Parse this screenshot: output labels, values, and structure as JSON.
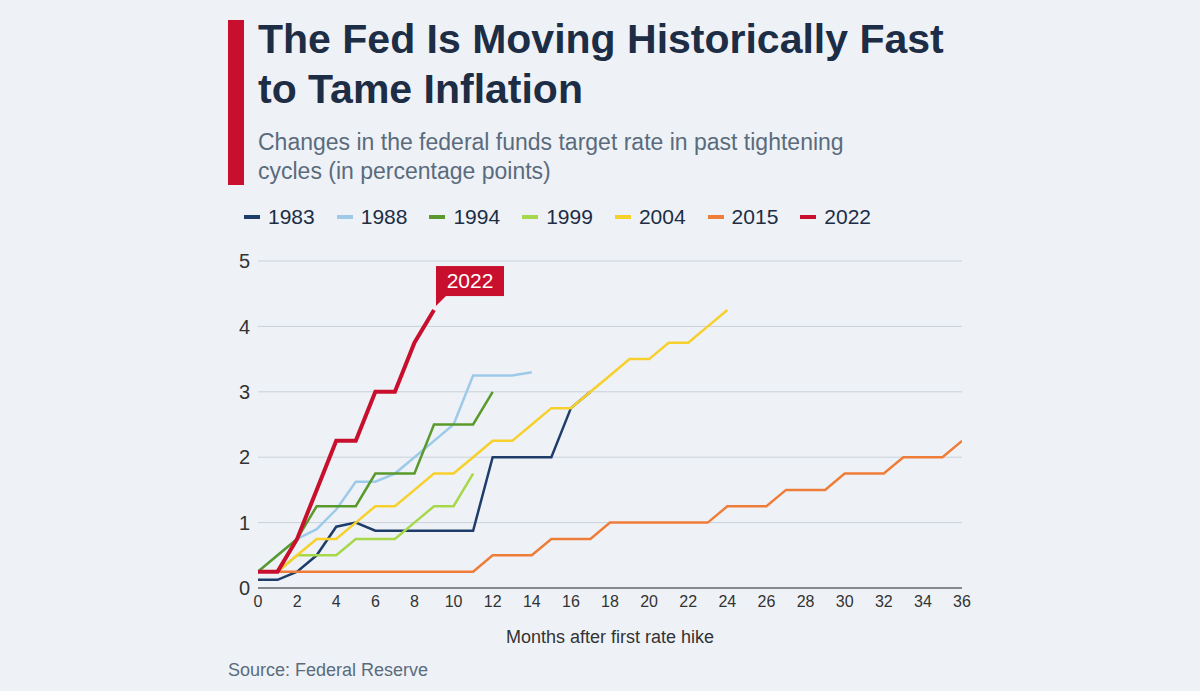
{
  "chart_data": {
    "type": "line",
    "title": "The Fed Is Moving Historically Fast to Tame Inflation",
    "subtitle": "Changes in the federal funds target rate in past tightening cycles (in percentage points)",
    "x_label": "Months after first rate hike",
    "source": "Source: Federal Reserve",
    "x": [
      0,
      1,
      2,
      3,
      4,
      5,
      6,
      7,
      8,
      9,
      10,
      11,
      12,
      13,
      14,
      15,
      16,
      17,
      18,
      19,
      20,
      21,
      22,
      23,
      24,
      25,
      26,
      27,
      28,
      29,
      30,
      31,
      32,
      33,
      34,
      35,
      36
    ],
    "xlim": [
      0,
      36
    ],
    "xticks": [
      0,
      2,
      4,
      6,
      8,
      10,
      12,
      14,
      16,
      18,
      20,
      22,
      24,
      26,
      28,
      30,
      32,
      34,
      36
    ],
    "ylim": [
      0,
      5
    ],
    "yticks": [
      0,
      1,
      2,
      3,
      4,
      5
    ],
    "grid": true,
    "series": [
      {
        "name": "1983",
        "color": "#1f3d6b",
        "values": [
          0.125,
          0.125,
          0.25,
          0.5,
          0.9375,
          1.0,
          0.875,
          0.875,
          0.875,
          0.875,
          0.875,
          0.875,
          2.0,
          2.0,
          2.0,
          2.0,
          2.75,
          3.0,
          null,
          null,
          null,
          null,
          null,
          null,
          null,
          null,
          null,
          null,
          null,
          null,
          null,
          null,
          null,
          null,
          null,
          null,
          null
        ]
      },
      {
        "name": "1988",
        "color": "#9ecae9",
        "values": [
          0.25,
          0.5,
          0.75,
          0.9,
          1.2,
          1.625,
          1.625,
          1.75,
          2.0,
          2.25,
          2.5,
          3.25,
          3.25,
          3.25,
          3.3,
          null,
          null,
          null,
          null,
          null,
          null,
          null,
          null,
          null,
          null,
          null,
          null,
          null,
          null,
          null,
          null,
          null,
          null,
          null,
          null,
          null,
          null
        ]
      },
      {
        "name": "1994",
        "color": "#5a9a2c",
        "values": [
          0.25,
          0.5,
          0.75,
          1.25,
          1.25,
          1.25,
          1.75,
          1.75,
          1.75,
          2.5,
          2.5,
          2.5,
          3.0,
          null,
          null,
          null,
          null,
          null,
          null,
          null,
          null,
          null,
          null,
          null,
          null,
          null,
          null,
          null,
          null,
          null,
          null,
          null,
          null,
          null,
          null,
          null,
          null
        ]
      },
      {
        "name": "1999",
        "color": "#a6d84a",
        "values": [
          0.25,
          0.25,
          0.5,
          0.5,
          0.5,
          0.75,
          0.75,
          0.75,
          1.0,
          1.25,
          1.25,
          1.75,
          null,
          null,
          null,
          null,
          null,
          null,
          null,
          null,
          null,
          null,
          null,
          null,
          null,
          null,
          null,
          null,
          null,
          null,
          null,
          null,
          null,
          null,
          null,
          null,
          null
        ]
      },
      {
        "name": "2004",
        "color": "#f7d02c",
        "values": [
          0.25,
          0.25,
          0.5,
          0.75,
          0.75,
          1.0,
          1.25,
          1.25,
          1.5,
          1.75,
          1.75,
          2.0,
          2.25,
          2.25,
          2.5,
          2.75,
          2.75,
          3.0,
          3.25,
          3.5,
          3.5,
          3.75,
          3.75,
          4.0,
          4.25,
          null,
          null,
          null,
          null,
          null,
          null,
          null,
          null,
          null,
          null,
          null,
          null
        ]
      },
      {
        "name": "2015",
        "color": "#ef7d3a",
        "values": [
          0.25,
          0.25,
          0.25,
          0.25,
          0.25,
          0.25,
          0.25,
          0.25,
          0.25,
          0.25,
          0.25,
          0.25,
          0.5,
          0.5,
          0.5,
          0.75,
          0.75,
          0.75,
          1.0,
          1.0,
          1.0,
          1.0,
          1.0,
          1.0,
          1.25,
          1.25,
          1.25,
          1.5,
          1.5,
          1.5,
          1.75,
          1.75,
          1.75,
          2.0,
          2.0,
          2.0,
          2.25
        ]
      },
      {
        "name": "2022",
        "color": "#c8102e",
        "values": [
          0.25,
          0.25,
          0.75,
          1.5,
          2.25,
          2.25,
          3.0,
          3.0,
          3.75,
          4.25,
          null,
          null,
          null,
          null,
          null,
          null,
          null,
          null,
          null,
          null,
          null,
          null,
          null,
          null,
          null,
          null,
          null,
          null,
          null,
          null,
          null,
          null,
          null,
          null,
          null,
          null,
          null
        ]
      }
    ]
  }
}
